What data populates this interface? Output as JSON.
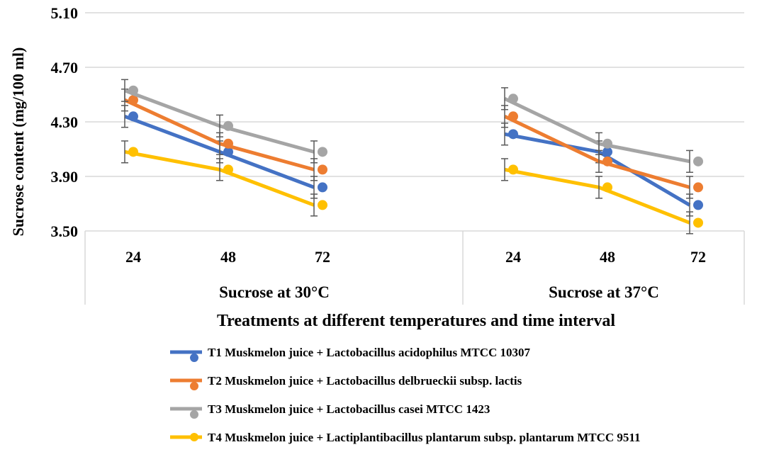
{
  "chart_data": {
    "type": "line",
    "ylabel": "Sucrose content (mg/100 ml)",
    "xlabel": "Treatments at different temperatures and time interval",
    "ylim": [
      3.5,
      5.1
    ],
    "yticks": [
      "3.50",
      "3.90",
      "4.30",
      "4.70",
      "5.10"
    ],
    "grid": true,
    "legend_position": "bottom",
    "groups": [
      {
        "label": "Sucrose  at 30°C",
        "categories": [
          "24",
          "48",
          "72"
        ]
      },
      {
        "label": "Sucrose  at 37°C",
        "categories": [
          "24",
          "48",
          "72"
        ]
      }
    ],
    "error": 0.08,
    "series": [
      {
        "name": "T1 Muskmelon juice + Lactobacillus acidophilus MTCC 10307",
        "color": "#4472C4",
        "values": [
          [
            4.34,
            4.08,
            3.82
          ],
          [
            4.21,
            4.08,
            3.69
          ]
        ]
      },
      {
        "name": "T2 Muskmelon juice + Lactobacillus delbrueckii subsp. lactis",
        "color": "#ED7D31",
        "values": [
          [
            4.46,
            4.14,
            3.95
          ],
          [
            4.34,
            4.01,
            3.82
          ]
        ]
      },
      {
        "name": "T3 Muskmelon juice + Lactobacillus casei MTCC 1423",
        "color": "#A5A5A5",
        "values": [
          [
            4.53,
            4.27,
            4.08
          ],
          [
            4.47,
            4.14,
            4.01
          ]
        ]
      },
      {
        "name": "T4 Muskmelon juice + Lactiplantibacillus plantarum subsp. plantarum MTCC 9511",
        "color": "#FFC000",
        "values": [
          [
            4.08,
            3.95,
            3.69
          ],
          [
            3.95,
            3.82,
            3.56
          ]
        ]
      }
    ]
  }
}
